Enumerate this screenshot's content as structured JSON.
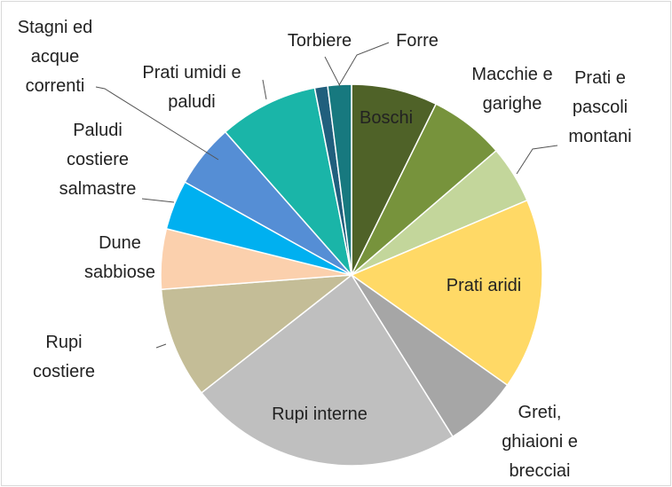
{
  "chart_data": {
    "type": "pie",
    "categories": [
      "Boschi",
      "Macchie e garighe",
      "Prati e pascoli montani",
      "Prati aridi",
      "Greti, ghiaioni e brecciai",
      "Rupi interne",
      "Rupi costiere",
      "Dune sabbiose",
      "Paludi costiere salmastre",
      "Stagni ed acque correnti",
      "Prati umidi e paludi",
      "Torbiere",
      "Forre"
    ],
    "values": [
      7.3,
      6.4,
      4.9,
      16.2,
      6.3,
      23.3,
      9.4,
      5.1,
      4.2,
      5.4,
      8.4,
      1.1,
      2.0
    ],
    "colors": [
      "#4f6228",
      "#77933c",
      "#c3d69b",
      "#ffd966",
      "#a6a6a6",
      "#bfbfbf",
      "#c4bd97",
      "#fbd0ad",
      "#00b0f0",
      "#558ed5",
      "#1ab5a8",
      "#215f7d",
      "#17797f"
    ]
  }
}
